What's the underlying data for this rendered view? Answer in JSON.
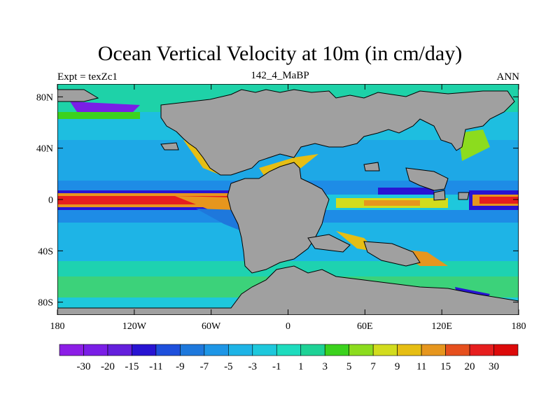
{
  "title": "Ocean Vertical Velocity at 10m (in cm/day)",
  "subtitle_left": "Expt = texZc1",
  "subtitle_center": "142_4_MaBP",
  "subtitle_right": "ANN",
  "chart_data": {
    "type": "heatmap",
    "x_ticks": [
      "180",
      "120W",
      "60W",
      "0",
      "60E",
      "120E",
      "180"
    ],
    "x_values": [
      -180,
      -120,
      -60,
      0,
      60,
      120,
      180
    ],
    "y_ticks": [
      "80N",
      "40N",
      "0",
      "40S",
      "80S"
    ],
    "y_values": [
      80,
      40,
      0,
      -40,
      -80
    ],
    "xlim": [
      -180,
      180
    ],
    "ylim": [
      -90,
      90
    ],
    "land_color": "#a0a0a0",
    "colorbar": {
      "labels": [
        "-30",
        "-20",
        "-15",
        "-11",
        "-9",
        "-7",
        "-5",
        "-3",
        "-1",
        "1",
        "3",
        "5",
        "7",
        "9",
        "11",
        "15",
        "20",
        "30"
      ],
      "colors": [
        "#8c1ee6",
        "#7a1ee6",
        "#6420dc",
        "#2814d2",
        "#1e50dc",
        "#1e78dc",
        "#1e96e6",
        "#1eb4e6",
        "#1ec8dc",
        "#1edcbe",
        "#1ed296",
        "#3cd21e",
        "#8cdc1e",
        "#d2dc1e",
        "#e6be14",
        "#e6961e",
        "#e6501e",
        "#e61e1e",
        "#dc0a0a"
      ]
    }
  }
}
